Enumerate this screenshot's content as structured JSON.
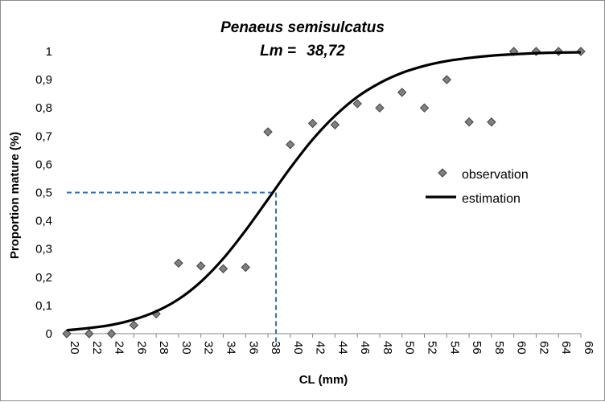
{
  "chart_data": {
    "type": "scatter",
    "title": "Penaeus semisulcatus",
    "subtitle_label": "Lm =",
    "subtitle_value": "38,72",
    "xlabel": "CL (mm)",
    "ylabel": "Proportion mature (%)",
    "xlim": [
      20,
      66
    ],
    "ylim": [
      0,
      1
    ],
    "x_ticks": [
      "20",
      "22",
      "24",
      "26",
      "28",
      "30",
      "32",
      "34",
      "36",
      "38",
      "40",
      "42",
      "44",
      "46",
      "48",
      "50",
      "52",
      "54",
      "56",
      "58",
      "60",
      "62",
      "64",
      "66"
    ],
    "y_ticks": [
      "0",
      "0,1",
      "0,2",
      "0,3",
      "0,4",
      "0,5",
      "0,6",
      "0,7",
      "0,8",
      "0,9",
      "1"
    ],
    "grid": false,
    "legend_position": "right",
    "lm_value": 38.72,
    "lm_proportion": 0.5,
    "series": [
      {
        "name": "observation",
        "kind": "scatter",
        "color": "#808080",
        "x": [
          20,
          22,
          24,
          26,
          28,
          30,
          32,
          34,
          36,
          38,
          40,
          42,
          44,
          46,
          48,
          50,
          52,
          54,
          56,
          58,
          60,
          62,
          64,
          66
        ],
        "y": [
          0,
          0,
          0,
          0.03,
          0.07,
          0.25,
          0.24,
          0.23,
          0.235,
          0.715,
          0.67,
          0.745,
          0.74,
          0.815,
          0.8,
          0.855,
          0.8,
          0.9,
          0.75,
          0.75,
          1,
          1,
          1,
          1
        ]
      },
      {
        "name": "estimation",
        "kind": "line",
        "color": "#000000",
        "x": [
          20,
          22,
          24,
          26,
          28,
          30,
          32,
          34,
          36,
          38,
          40,
          42,
          44,
          46,
          48,
          50,
          52,
          54,
          56,
          58,
          60,
          62,
          64,
          66
        ],
        "y": [
          0.012,
          0.02,
          0.031,
          0.05,
          0.079,
          0.122,
          0.184,
          0.266,
          0.366,
          0.476,
          0.587,
          0.688,
          0.772,
          0.839,
          0.888,
          0.924,
          0.949,
          0.966,
          0.977,
          0.985,
          0.99,
          0.994,
          0.996,
          0.997
        ]
      }
    ]
  }
}
